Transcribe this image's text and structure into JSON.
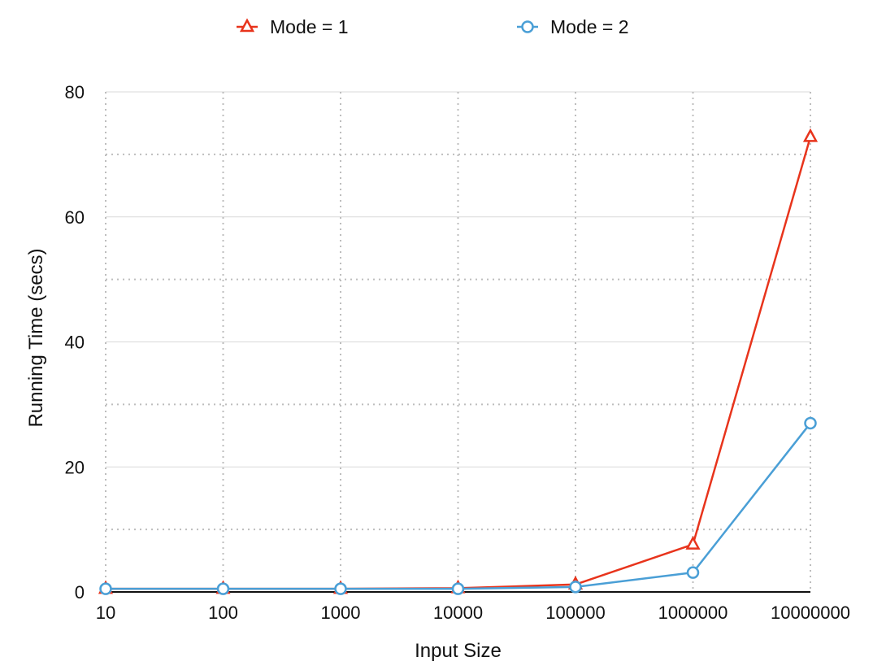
{
  "chart_data": {
    "type": "line",
    "title": "",
    "xlabel": "Input Size",
    "ylabel": "Running Time (secs)",
    "categories": [
      "10",
      "100",
      "1000",
      "10000",
      "100000",
      "1000000",
      "10000000"
    ],
    "ylim": [
      0,
      80
    ],
    "yticks": [
      "0",
      "20",
      "40",
      "60",
      "80"
    ],
    "grid": true,
    "legend_position": "top",
    "series": [
      {
        "name": "Mode = 1",
        "color": "#e8341c",
        "marker": "triangle",
        "values": [
          0.5,
          0.5,
          0.5,
          0.6,
          1.2,
          7.6,
          72.8
        ]
      },
      {
        "name": "Mode = 2",
        "color": "#4a9fd6",
        "marker": "circle",
        "values": [
          0.5,
          0.5,
          0.5,
          0.5,
          0.8,
          3.1,
          27.0
        ]
      }
    ]
  }
}
